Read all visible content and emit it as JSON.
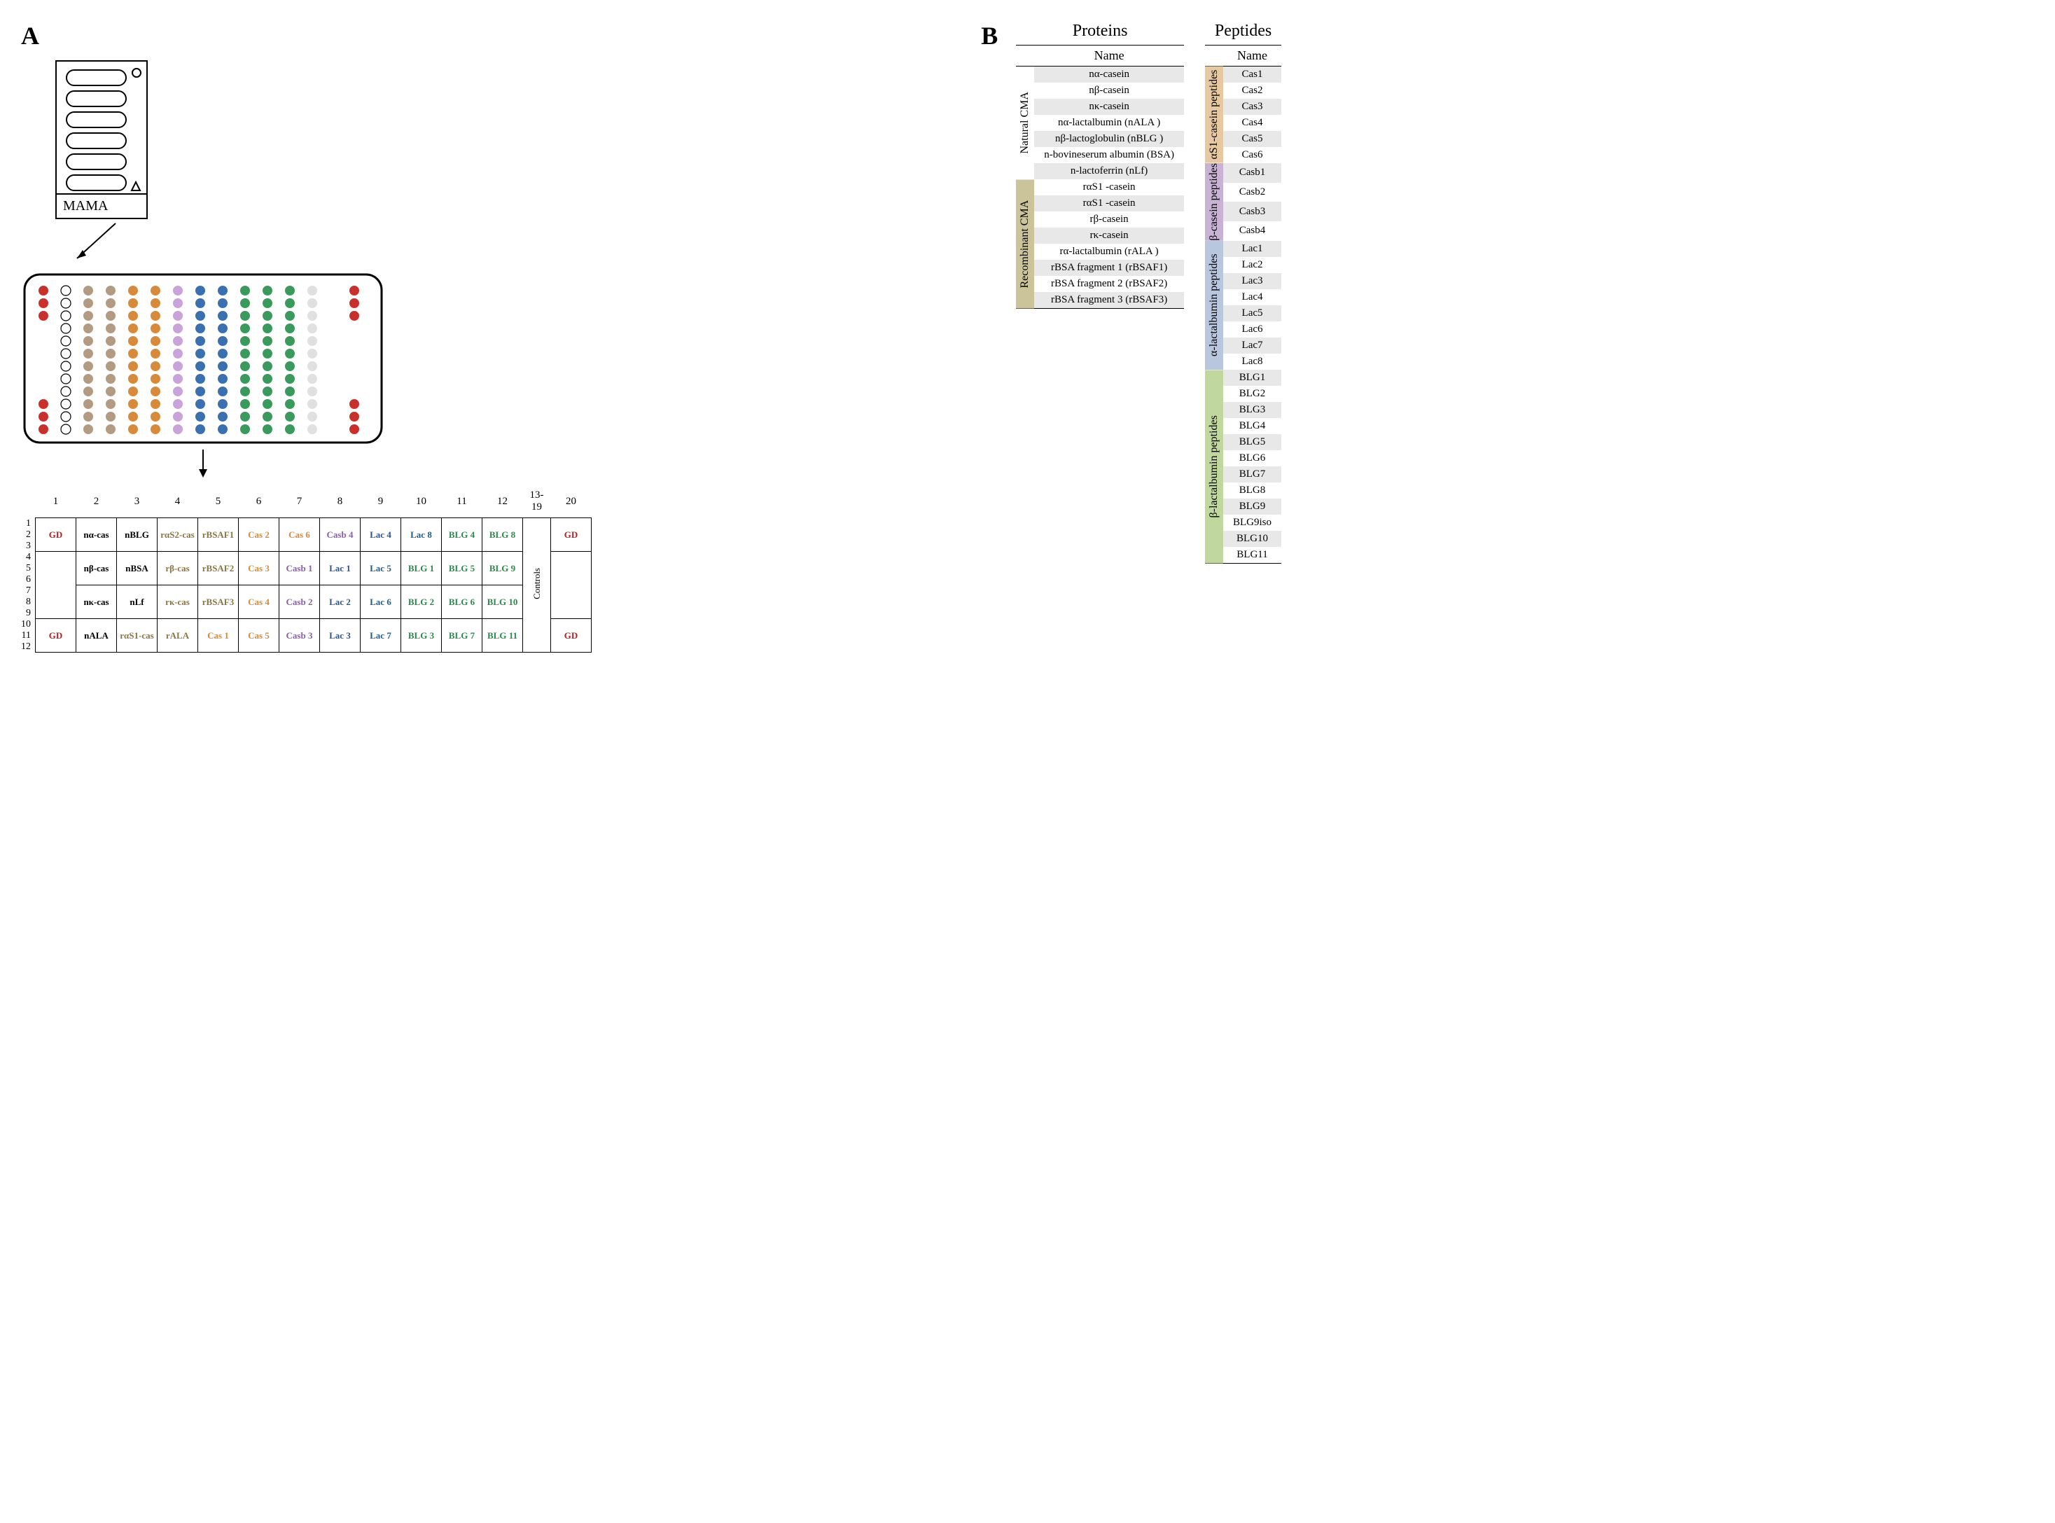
{
  "labels": {
    "A": "A",
    "B": "B",
    "mama": "MAMA"
  },
  "colors": {
    "GD": "#b22222",
    "natural": "#000000",
    "recomb": "#8a7640",
    "casCol": "#d78b3a",
    "casbCol": "#8a5da6",
    "lac14": "#2d5590",
    "lac58": "#1f5e8a",
    "blg": "#2a8a4a",
    "catNatural": "transparent",
    "catRecomb": "#cbc49a",
    "catAlpha": "#e6c9a0",
    "catBeta": "#c9b3d4",
    "catLac": "#b9c7de",
    "catBlg": "#c0d79e",
    "wellRed": "#c9302c",
    "wellWhite": "#ffffff",
    "wellBrownL": "#b29b80",
    "wellBrownD": "#8a6b4a",
    "wellOrange": "#d78b3a",
    "wellPurple": "#c9a3d9",
    "wellBlue": "#3a6fb0",
    "wellGreen": "#3a9a5b",
    "wellGray": "#e0e0e0"
  },
  "colHeaders": [
    "1",
    "2",
    "3",
    "4",
    "5",
    "6",
    "7",
    "8",
    "9",
    "10",
    "11",
    "12",
    "13-19",
    "20"
  ],
  "rowHeaders": [
    "1",
    "2",
    "3",
    "4",
    "5",
    "6",
    "7",
    "8",
    "9",
    "10",
    "11",
    "12"
  ],
  "grid": [
    [
      {
        "t": "GD",
        "c": "GD"
      },
      {
        "t": "nα-cas",
        "c": "natural"
      },
      {
        "t": "nBLG",
        "c": "natural"
      },
      {
        "t": "rαS2-cas",
        "c": "recomb"
      },
      {
        "t": "rBSAF1",
        "c": "recomb"
      },
      {
        "t": "Cas 2",
        "c": "casCol"
      },
      {
        "t": "Cas 6",
        "c": "casCol"
      },
      {
        "t": "Casb 4",
        "c": "casbCol"
      },
      {
        "t": "Lac 4",
        "c": "lac14"
      },
      {
        "t": "Lac 8",
        "c": "lac58"
      },
      {
        "t": "BLG 4",
        "c": "blg"
      },
      {
        "t": "BLG 8",
        "c": "blg"
      },
      {
        "t": "",
        "c": "natural"
      },
      {
        "t": "GD",
        "c": "GD"
      }
    ],
    [
      {
        "t": "",
        "c": "natural"
      },
      {
        "t": "nβ-cas",
        "c": "natural"
      },
      {
        "t": "nBSA",
        "c": "natural"
      },
      {
        "t": "rβ-cas",
        "c": "recomb"
      },
      {
        "t": "rBSAF2",
        "c": "recomb"
      },
      {
        "t": "Cas 3",
        "c": "casCol"
      },
      {
        "t": "Casb 1",
        "c": "casbCol"
      },
      {
        "t": "Lac 1",
        "c": "lac14"
      },
      {
        "t": "Lac 5",
        "c": "lac58"
      },
      {
        "t": "BLG 1",
        "c": "blg"
      },
      {
        "t": "BLG 5",
        "c": "blg"
      },
      {
        "t": "BLG 9",
        "c": "blg"
      },
      {
        "t": "",
        "c": "natural"
      },
      {
        "t": "",
        "c": "natural"
      }
    ],
    [
      {
        "t": "",
        "c": "natural"
      },
      {
        "t": "nκ-cas",
        "c": "natural"
      },
      {
        "t": "nLf",
        "c": "natural"
      },
      {
        "t": "rκ-cas",
        "c": "recomb"
      },
      {
        "t": "rBSAF3",
        "c": "recomb"
      },
      {
        "t": "Cas 4",
        "c": "casCol"
      },
      {
        "t": "Casb 2",
        "c": "casbCol"
      },
      {
        "t": "Lac 2",
        "c": "lac14"
      },
      {
        "t": "Lac 6",
        "c": "lac58"
      },
      {
        "t": "BLG 2",
        "c": "blg"
      },
      {
        "t": "BLG 6",
        "c": "blg"
      },
      {
        "t": "BLG 10",
        "c": "blg"
      },
      {
        "t": "",
        "c": "natural"
      },
      {
        "t": "",
        "c": "natural"
      }
    ],
    [
      {
        "t": "GD",
        "c": "GD"
      },
      {
        "t": "nALA",
        "c": "natural"
      },
      {
        "t": "rαS1-cas",
        "c": "recomb"
      },
      {
        "t": "rALA",
        "c": "recomb"
      },
      {
        "t": "Cas 1",
        "c": "casCol"
      },
      {
        "t": "Cas 5",
        "c": "casCol"
      },
      {
        "t": "Casb 3",
        "c": "casbCol"
      },
      {
        "t": "Lac 3",
        "c": "lac14"
      },
      {
        "t": "Lac 7",
        "c": "lac58"
      },
      {
        "t": "BLG 3",
        "c": "blg"
      },
      {
        "t": "BLG 7",
        "c": "blg"
      },
      {
        "t": "BLG 11",
        "c": "blg"
      },
      {
        "t": "",
        "c": "natural"
      },
      {
        "t": "GD",
        "c": "GD"
      }
    ]
  ],
  "controlsLabel": "Controls",
  "proteins": {
    "title": "Proteins",
    "subtitle": "Name",
    "categories": [
      {
        "label": "Natural CMA",
        "color": "catNatural",
        "rows": [
          "nα-casein",
          "nβ-casein",
          "nκ-casein",
          "nα-lactalbumin (nALA )",
          "nβ-lactoglobulin (nBLG )",
          "n-bovineserum albumin (BSA)",
          "n-lactoferrin (nLf)"
        ]
      },
      {
        "label": "Recombinant CMA",
        "color": "catRecomb",
        "rows": [
          "rαS1 -casein",
          "rαS1 -casein",
          "rβ-casein",
          "rκ-casein",
          "rα-lactalbumin (rALA )",
          "rBSA   fragment 1 (rBSAF1)",
          "rBSA   fragment 2 (rBSAF2)",
          "rBSA   fragment 3 (rBSAF3)"
        ]
      }
    ]
  },
  "peptides": {
    "title": "Peptides",
    "subtitle": "Name",
    "categories": [
      {
        "label": "αS1-casein peptides",
        "color": "catAlpha",
        "rows": [
          "Cas1",
          "Cas2",
          "Cas3",
          "Cas4",
          "Cas5",
          "Cas6"
        ]
      },
      {
        "label": "β-casein peptides",
        "color": "catBeta",
        "rows": [
          "Casb1",
          "Casb2",
          "Casb3",
          "Casb4"
        ]
      },
      {
        "label": "α-lactalbumin peptides",
        "color": "catLac",
        "rows": [
          "Lac1",
          "Lac2",
          "Lac3",
          "Lac4",
          "Lac5",
          "Lac6",
          "Lac7",
          "Lac8"
        ]
      },
      {
        "label": "β-lactalbumin peptides",
        "color": "catBlg",
        "rows": [
          "BLG1",
          "BLG2",
          "BLG3",
          "BLG4",
          "BLG5",
          "BLG6",
          "BLG7",
          "BLG8",
          "BLG9",
          "BLG9iso",
          "BLG10",
          "BLG11"
        ]
      }
    ]
  },
  "wellCols": [
    "wellRed",
    "wellWhite",
    "wellBrownL",
    "wellBrownL",
    "wellOrange",
    "wellOrange",
    "wellPurple",
    "wellBlue",
    "wellBlue",
    "wellGreen",
    "wellGreen",
    "wellGreen",
    "wellGray",
    "wellRed"
  ]
}
